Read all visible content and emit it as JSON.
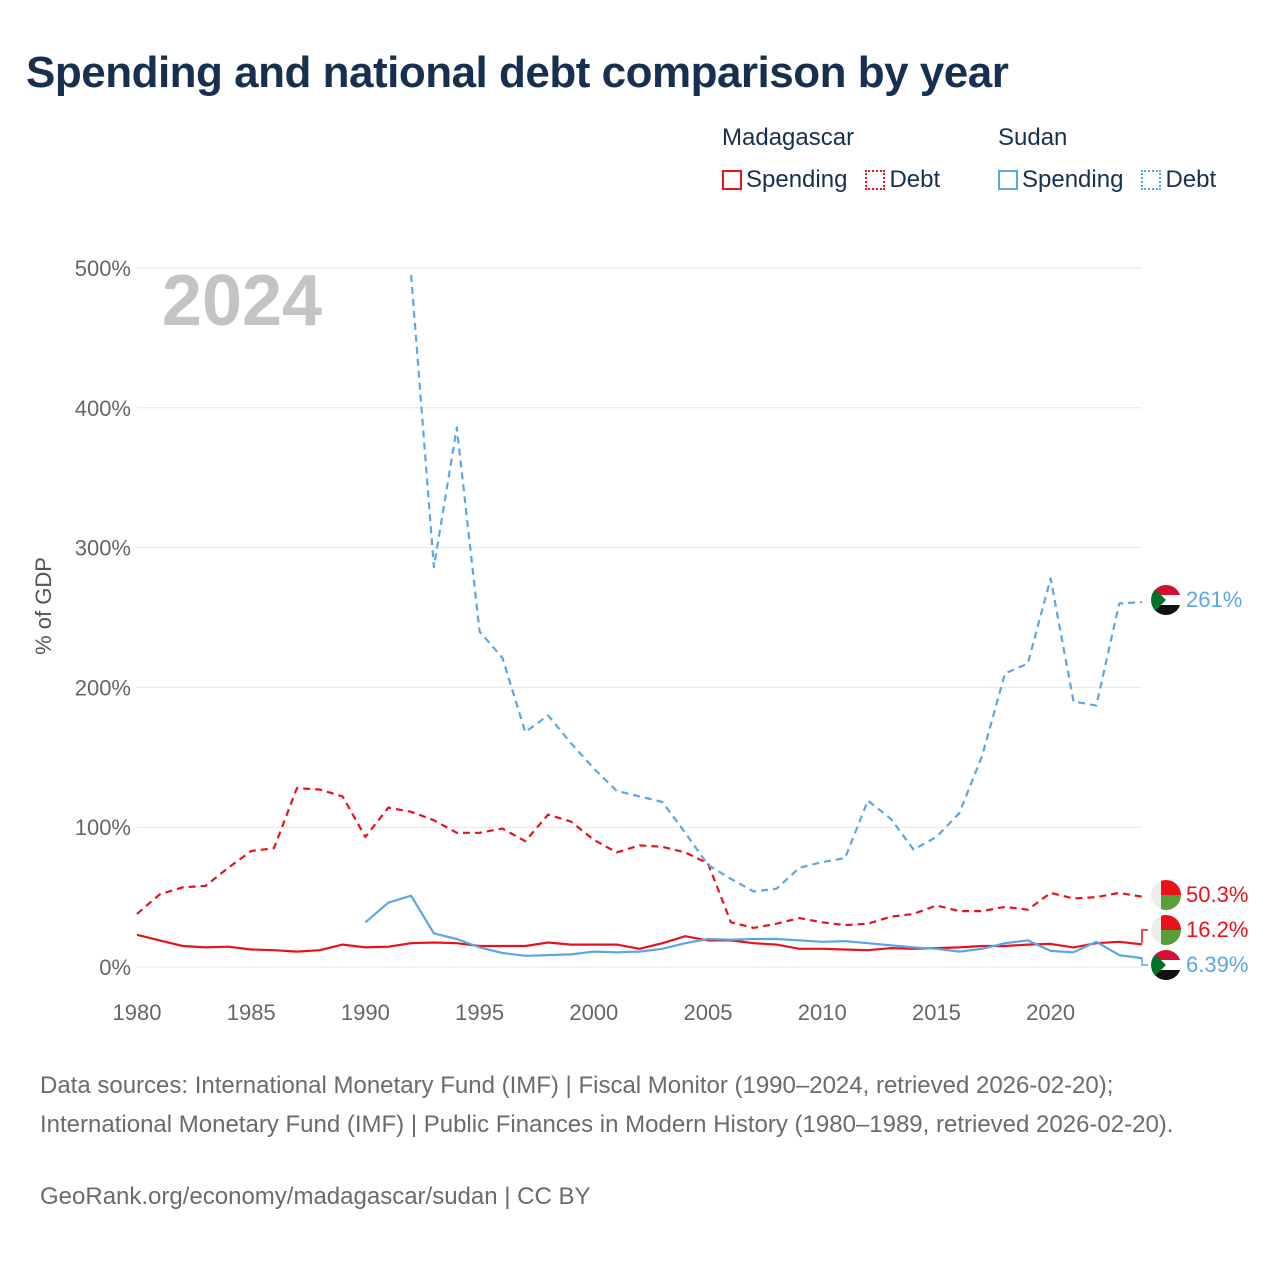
{
  "title": "Spending and national debt comparison by year",
  "legend": {
    "groups": [
      {
        "name": "Madagascar",
        "color": "#e8131a",
        "items": [
          {
            "label": "Spending",
            "style": "solid"
          },
          {
            "label": "Debt",
            "style": "dotted"
          }
        ]
      },
      {
        "name": "Sudan",
        "color": "#5aa6e6",
        "items": [
          {
            "label": "Spending",
            "style": "solid"
          },
          {
            "label": "Debt",
            "style": "dotted"
          }
        ]
      }
    ]
  },
  "year_label": "2024",
  "footer": {
    "sources": "Data sources: International Monetary Fund (IMF) | Fiscal Monitor (1990–2024, retrieved 2026-02-20); International Monetary Fund (IMF) | Public Finances in Modern History (1980–1989, retrieved 2026-02-20).",
    "credit": "GeoRank.org/economy/madagascar/sudan | CC BY"
  },
  "chart_data": {
    "type": "line",
    "ylabel": "% of GDP",
    "xlabel": "",
    "xlim": [
      1980,
      2024
    ],
    "ylim": [
      0,
      500
    ],
    "x_ticks": [
      1980,
      1985,
      1990,
      1995,
      2000,
      2005,
      2010,
      2015,
      2020
    ],
    "x_tick_labels": [
      "1980",
      "1985",
      "1990",
      "1995",
      "2000",
      "2005",
      "2010",
      "2015",
      "2020"
    ],
    "y_ticks": [
      0,
      100,
      200,
      300,
      400,
      500
    ],
    "y_tick_labels": [
      "0%",
      "100%",
      "200%",
      "300%",
      "400%",
      "500%"
    ],
    "grid": true,
    "series": [
      {
        "name": "Madagascar Spending",
        "country": "Madagascar",
        "color": "#e8131a",
        "dash": "solid",
        "end_label": "16.2%",
        "flag": "madagascar",
        "x": [
          1980,
          1981,
          1982,
          1983,
          1984,
          1985,
          1986,
          1987,
          1988,
          1989,
          1990,
          1991,
          1992,
          1993,
          1994,
          1995,
          1996,
          1997,
          1998,
          1999,
          2000,
          2001,
          2002,
          2003,
          2004,
          2005,
          2006,
          2007,
          2008,
          2009,
          2010,
          2011,
          2012,
          2013,
          2014,
          2015,
          2016,
          2017,
          2018,
          2019,
          2020,
          2021,
          2022,
          2023,
          2024
        ],
        "values": [
          23,
          19,
          15,
          14,
          14.5,
          12.5,
          12,
          11,
          12,
          16,
          14,
          14.5,
          17,
          17.5,
          17,
          15,
          15,
          15,
          17.5,
          16,
          16,
          16,
          13,
          17,
          22,
          19,
          19,
          17,
          16,
          13,
          13,
          12.5,
          12,
          13.5,
          13,
          13.5,
          14,
          15,
          15,
          16,
          16.5,
          14,
          17,
          18,
          16.2
        ]
      },
      {
        "name": "Madagascar Debt",
        "country": "Madagascar",
        "color": "#e8131a",
        "dash": "dashed",
        "end_label": "50.3%",
        "flag": "madagascar",
        "x": [
          1980,
          1981,
          1982,
          1983,
          1984,
          1985,
          1986,
          1987,
          1988,
          1989,
          1990,
          1991,
          1992,
          1993,
          1994,
          1995,
          1996,
          1997,
          1998,
          1999,
          2000,
          2001,
          2002,
          2003,
          2004,
          2005,
          2006,
          2007,
          2008,
          2009,
          2010,
          2011,
          2012,
          2013,
          2014,
          2015,
          2016,
          2017,
          2018,
          2019,
          2020,
          2021,
          2022,
          2023,
          2024
        ],
        "values": [
          38,
          52,
          57,
          58,
          71,
          83,
          85,
          128,
          127,
          122,
          93,
          114,
          111,
          105,
          96,
          96,
          99,
          90,
          109,
          104,
          91,
          82,
          87,
          86,
          82,
          74,
          32,
          28,
          31,
          35,
          32,
          30,
          31,
          36,
          38,
          44,
          40,
          40,
          43,
          41,
          53,
          49,
          50,
          53,
          50.3
        ]
      },
      {
        "name": "Sudan Spending",
        "country": "Sudan",
        "color": "#5aa6e6",
        "dash": "solid",
        "end_label": "6.39%",
        "flag": "sudan",
        "x": [
          1990,
          1991,
          1992,
          1993,
          1994,
          1995,
          1996,
          1997,
          1998,
          1999,
          2000,
          2001,
          2002,
          2003,
          2004,
          2005,
          2006,
          2007,
          2008,
          2009,
          2010,
          2011,
          2012,
          2013,
          2014,
          2015,
          2016,
          2017,
          2018,
          2019,
          2020,
          2021,
          2022,
          2023,
          2024
        ],
        "values": [
          32,
          46,
          51,
          24,
          20,
          14,
          10,
          8,
          8.5,
          9,
          11,
          10.5,
          11,
          13,
          17,
          20,
          19.5,
          20,
          20,
          19,
          18,
          18.5,
          17,
          15.5,
          14,
          13,
          11,
          13,
          17,
          19,
          11.5,
          10.5,
          18,
          8.5,
          6.39
        ]
      },
      {
        "name": "Sudan Debt",
        "country": "Sudan",
        "color": "#5aa6e6",
        "dash": "dashed",
        "end_label": "261%",
        "flag": "sudan",
        "x": [
          1992,
          1993,
          1994,
          1995,
          1996,
          1997,
          1998,
          1999,
          2000,
          2001,
          2002,
          2003,
          2004,
          2005,
          2006,
          2007,
          2008,
          2009,
          2010,
          2011,
          2012,
          2013,
          2014,
          2015,
          2016,
          2017,
          2018,
          2019,
          2020,
          2021,
          2022,
          2023,
          2024
        ],
        "values": [
          495,
          286,
          386,
          240,
          221,
          168,
          180,
          160,
          142,
          126,
          122,
          118,
          96,
          73,
          63,
          54,
          56,
          71,
          75,
          78,
          119,
          106,
          84,
          93,
          110,
          151,
          210,
          217,
          278,
          190,
          187,
          260,
          261
        ]
      }
    ]
  }
}
